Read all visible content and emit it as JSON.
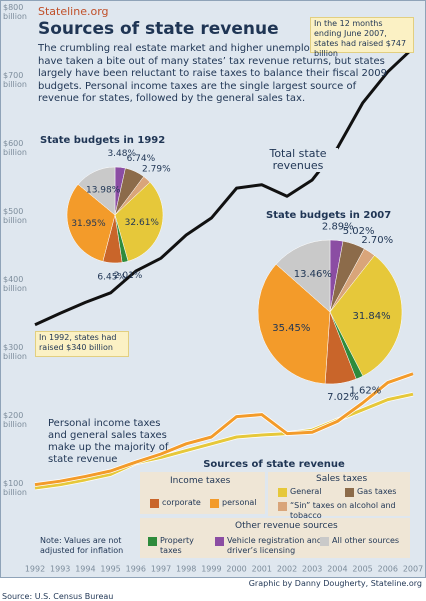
{
  "header": {
    "site": "Stateline.org",
    "title": "Sources of state revenue",
    "intro": "The crumbling real estate market and higher unemployment rate have taken a bite out of many states’ tax revenue returns, but states largely have been reluctant to raise taxes to balance their fiscal 2009 budgets. Personal income taxes are the single largest source of revenue for states, followed by the general sales tax."
  },
  "chart_data": [
    {
      "type": "line",
      "x": [
        1992,
        1993,
        1994,
        1995,
        1996,
        1997,
        1998,
        1999,
        2000,
        2001,
        2002,
        2003,
        2004,
        2005,
        2006,
        2007
      ],
      "xlim": [
        1992,
        2007
      ],
      "xticks": [
        1992,
        1993,
        1994,
        1995,
        1996,
        1997,
        1998,
        1999,
        2000,
        2001,
        2002,
        2003,
        2004,
        2005,
        2006,
        2007
      ],
      "ylim": [
        0,
        800
      ],
      "yticks": [
        {
          "value": 100,
          "label": "$100 billion"
        },
        {
          "value": 200,
          "label": "$200 billion"
        },
        {
          "value": 300,
          "label": "$300 billion"
        },
        {
          "value": 400,
          "label": "$400 billion"
        },
        {
          "value": 500,
          "label": "$500 billion"
        },
        {
          "value": 600,
          "label": "$600 billion"
        },
        {
          "value": 700,
          "label": "$700 billion"
        },
        {
          "value": 800,
          "label": "$800 billion"
        }
      ],
      "grid": false,
      "series": [
        {
          "name": "Total state revenues",
          "color": "#111111",
          "values": [
            340,
            357,
            373,
            387,
            419,
            438,
            472,
            497,
            541,
            546,
            529,
            553,
            600,
            666,
            712,
            747
          ]
        },
        {
          "color": "#f39b2a",
          "values": [
            105,
            110,
            117,
            125,
            138,
            150,
            165,
            175,
            205,
            208,
            180,
            182,
            198,
            225,
            255,
            268
          ]
        },
        {
          "color": "#e6c83a",
          "values": [
            100,
            105,
            112,
            120,
            137,
            145,
            155,
            165,
            175,
            178,
            180,
            185,
            200,
            215,
            230,
            238
          ]
        }
      ],
      "annotations": [
        "In the 12 months ending June 2007, states had raised $747 billion",
        "In 1992, states had raised $340 billion",
        "Personal income taxes and general sales taxes make up the majority of state revenue"
      ]
    },
    {
      "type": "pie",
      "title": "State budgets in 1992",
      "values": [
        3.48,
        6.74,
        2.79,
        32.61,
        2.01,
        6.45,
        31.95,
        13.98
      ],
      "value_labels": [
        "3.48%",
        "6.74%",
        "2.79%",
        "32.61%",
        "2.01%",
        "6.45%",
        "31.95%",
        "13.98%"
      ],
      "colors": [
        "#8b4da3",
        "#8c6b4a",
        "#d9a57a",
        "#e6c83a",
        "#2e8b3c",
        "#c9652a",
        "#f39b2a",
        "#c9c9c9"
      ]
    },
    {
      "type": "pie",
      "title": "State budgets in 2007",
      "values": [
        2.89,
        5.02,
        2.7,
        31.84,
        1.62,
        7.02,
        35.45,
        13.46
      ],
      "value_labels": [
        "2.89%",
        "5.02%",
        "2.70%",
        "31.84%",
        "1.62%",
        "7.02%",
        "35.45%",
        "13.46%"
      ],
      "colors": [
        "#8b4da3",
        "#8c6b4a",
        "#d9a57a",
        "#e6c83a",
        "#2e8b3c",
        "#c9652a",
        "#f39b2a",
        "#c9c9c9"
      ]
    }
  ],
  "legend": {
    "title": "Sources of state revenue",
    "groups": [
      {
        "title": "Income taxes",
        "items": [
          {
            "name": "corporate",
            "color": "#c9652a"
          },
          {
            "name": "personal",
            "color": "#f39b2a"
          }
        ]
      },
      {
        "title": "Sales taxes",
        "items": [
          {
            "name": "General",
            "color": "#e6c83a"
          },
          {
            "name": "Gas taxes",
            "color": "#8c6b4a"
          },
          {
            "name": "“Sin” taxes on alcohol and tobacco",
            "color": "#d9a57a"
          }
        ]
      },
      {
        "title": "Other revenue sources",
        "items": [
          {
            "name": "Property taxes",
            "color": "#2e8b3c"
          },
          {
            "name": "Vehicle registration and driver’s licensing",
            "color": "#8b4da3"
          },
          {
            "name": "All other sources",
            "color": "#c9c9c9"
          }
        ]
      }
    ]
  },
  "note": "Note: Values are not adjusted for inflation",
  "credit": "Graphic by Danny Dougherty, Stateline.org",
  "source": "Source: U.S. Census Bureau"
}
